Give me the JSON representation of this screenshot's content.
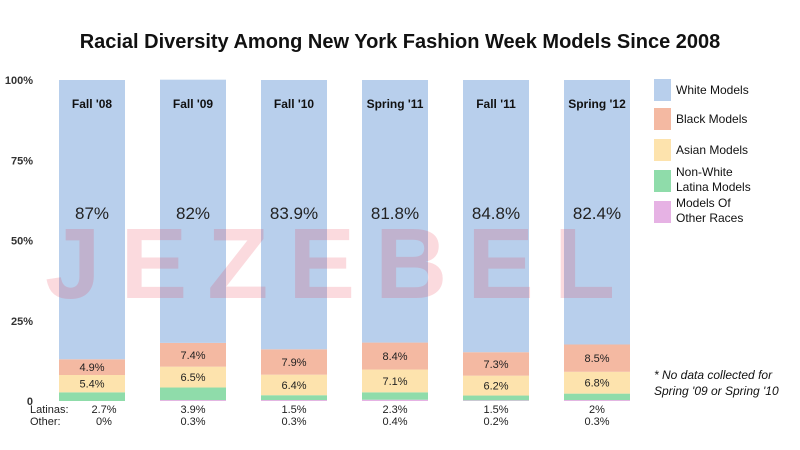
{
  "chart_data": {
    "type": "bar",
    "stacked": true,
    "title": "Racial Diversity Among New York Fashion Week Models Since 2008",
    "categories": [
      "Fall '08",
      "Fall '09",
      "Fall '10",
      "Spring '11",
      "Fall '11",
      "Spring '12"
    ],
    "series": [
      {
        "name": "White Models",
        "color": "#b8cfec",
        "values": [
          87,
          82,
          83.9,
          81.8,
          84.8,
          82.4
        ]
      },
      {
        "name": "Black Models",
        "color": "#f4b9a2",
        "values": [
          4.9,
          7.4,
          7.9,
          8.4,
          7.3,
          8.5
        ]
      },
      {
        "name": "Asian Models",
        "color": "#fde3ad",
        "values": [
          5.4,
          6.5,
          6.4,
          7.1,
          6.2,
          6.8
        ]
      },
      {
        "name": "Non-White Latina Models",
        "color": "#8fdcaa",
        "values": [
          2.7,
          3.9,
          1.5,
          2.3,
          1.5,
          2
        ]
      },
      {
        "name": "Models Of Other Races",
        "color": "#e6b2e4",
        "values": [
          0,
          0.3,
          0.3,
          0.4,
          0.2,
          0.3
        ]
      }
    ],
    "data_labels": {
      "white": [
        "87%",
        "82%",
        "83.9%",
        "81.8%",
        "84.8%",
        "82.4%"
      ],
      "black": [
        "4.9%",
        "7.4%",
        "7.9%",
        "8.4%",
        "7.3%",
        "8.5%"
      ],
      "asian": [
        "5.4%",
        "6.5%",
        "6.4%",
        "7.1%",
        "6.2%",
        "6.8%"
      ],
      "latinas": [
        "2.7%",
        "3.9%",
        "1.5%",
        "2.3%",
        "1.5%",
        "2%"
      ],
      "other": [
        "0%",
        "0.3%",
        "0.3%",
        "0.4%",
        "0.2%",
        "0.3%"
      ]
    },
    "row_labels": {
      "latinas": "Latinas:",
      "other": "Other:"
    },
    "legend": [
      {
        "lines": [
          "White Models"
        ],
        "color": "#b8cfec"
      },
      {
        "lines": [
          "Black Models"
        ],
        "color": "#f4b9a2"
      },
      {
        "lines": [
          "Asian Models"
        ],
        "color": "#fde3ad"
      },
      {
        "lines": [
          "Non-White",
          "Latina Models"
        ],
        "color": "#8fdcaa"
      },
      {
        "lines": [
          "Models Of",
          "Other Races"
        ],
        "color": "#e6b2e4"
      }
    ],
    "legend_position": "right",
    "ylim": [
      0,
      100
    ],
    "yticks": [
      0,
      25,
      50,
      75,
      100
    ],
    "ytick_labels": [
      "0",
      "25%",
      "50%",
      "75%",
      "100%"
    ],
    "grid": false,
    "note": [
      "* No data collected for",
      "Spring '09 or Spring '10"
    ],
    "watermark": "JEZEBEL"
  }
}
